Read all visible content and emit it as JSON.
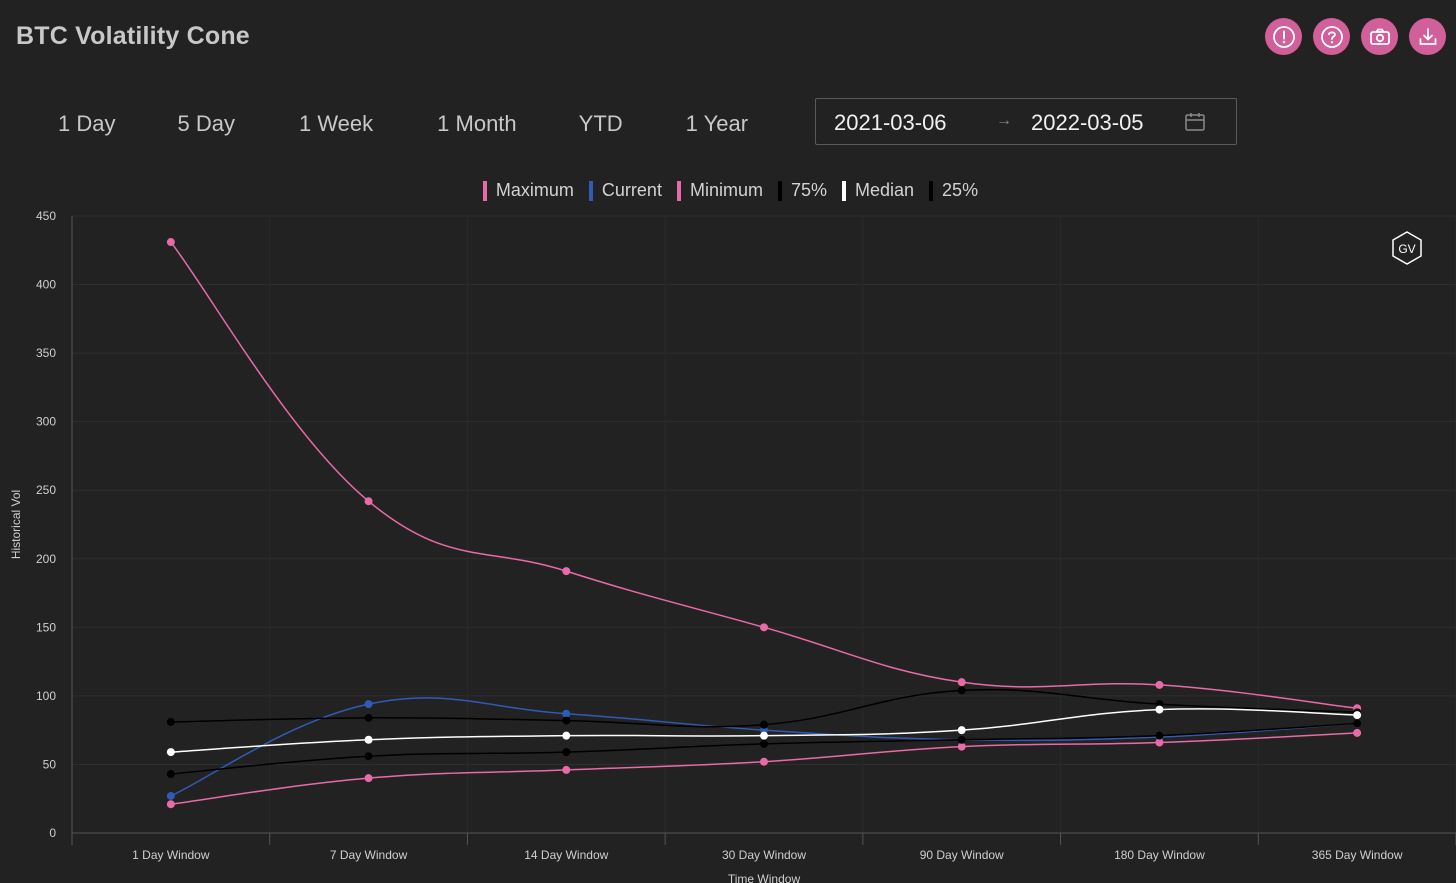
{
  "header": {
    "title": "BTC Volatility Cone"
  },
  "toolbar": {
    "buttons": [
      {
        "icon": "alert-icon",
        "name": "alert-button"
      },
      {
        "icon": "help-icon",
        "name": "help-button"
      },
      {
        "icon": "camera-icon",
        "name": "screenshot-button"
      },
      {
        "icon": "download-icon",
        "name": "download-button"
      }
    ],
    "accent": "#d15f99"
  },
  "range_tabs": [
    "1 Day",
    "5 Day",
    "1 Week",
    "1 Month",
    "YTD",
    "1 Year"
  ],
  "date_range": {
    "start": "2021-03-06",
    "separator": "→",
    "end": "2022-03-05"
  },
  "watermark": "GV",
  "chart_data": {
    "type": "line",
    "title": "",
    "xlabel": "Time Window",
    "ylabel": "Historical Vol",
    "ylim": [
      0,
      450
    ],
    "yticks": [
      0,
      50,
      100,
      150,
      200,
      250,
      300,
      350,
      400,
      450
    ],
    "categories": [
      "1 Day Window",
      "7 Day Window",
      "14 Day Window",
      "30 Day Window",
      "90 Day Window",
      "180 Day Window",
      "365 Day Window"
    ],
    "legend_position": "top-center",
    "grid": true,
    "series": [
      {
        "name": "Maximum",
        "color": "#e86aa8",
        "values": [
          431,
          242,
          191,
          150,
          110,
          108,
          91
        ]
      },
      {
        "name": "Current",
        "color": "#2f5bb7",
        "values": [
          27,
          94,
          87,
          75,
          68,
          70,
          80
        ]
      },
      {
        "name": "Minimum",
        "color": "#e86aa8",
        "values": [
          21,
          40,
          46,
          52,
          63,
          66,
          73
        ]
      },
      {
        "name": "75%",
        "color": "#000000",
        "values": [
          81,
          84,
          82,
          79,
          104,
          94,
          88
        ]
      },
      {
        "name": "Median",
        "color": "#ffffff",
        "values": [
          59,
          68,
          71,
          71,
          75,
          90,
          86
        ]
      },
      {
        "name": "25%",
        "color": "#000000",
        "values": [
          43,
          56,
          59,
          65,
          68,
          71,
          80
        ]
      }
    ]
  }
}
